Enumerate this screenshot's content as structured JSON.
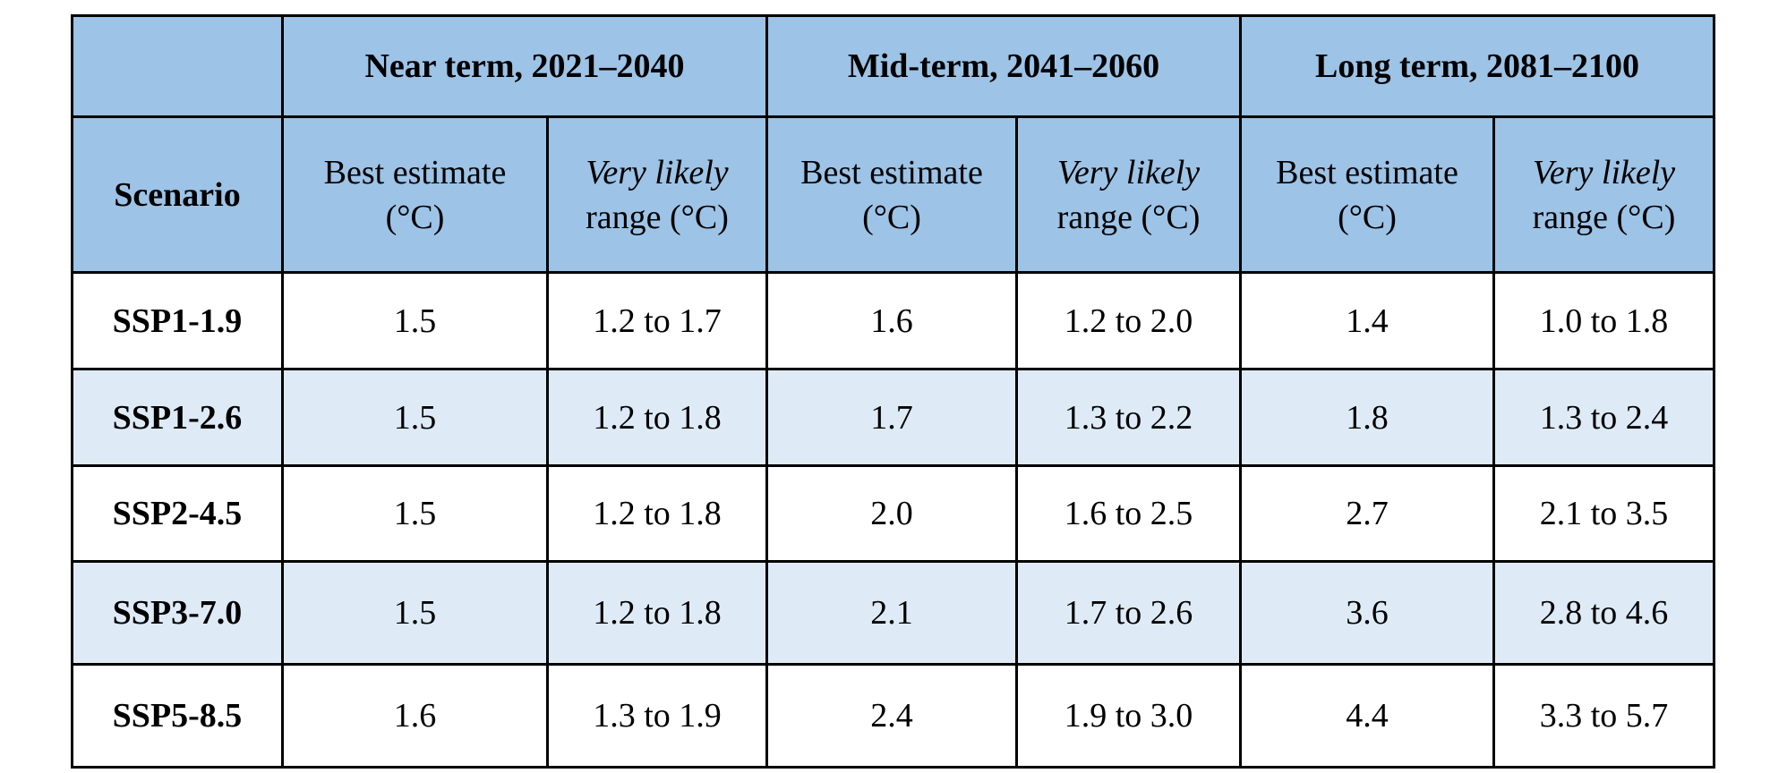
{
  "colors": {
    "header_bg": "#9dc3e6",
    "row_alt_bg": "#deebf7",
    "row_bg": "#ffffff",
    "border": "#000000"
  },
  "table": {
    "corner_label": "",
    "period_headers": [
      "Near term, 2021–2040",
      "Mid-term, 2041–2060",
      "Long term, 2081–2100"
    ],
    "scenario_label": "Scenario",
    "best_estimate": {
      "line1": "Best estimate",
      "line2": "(°C)"
    },
    "likely_range": {
      "line1": "Very likely",
      "line2": "range (°C)"
    },
    "rows": [
      {
        "scenario": "SSP1-1.9",
        "values": [
          "1.5",
          "1.2 to 1.7",
          "1.6",
          "1.2 to 2.0",
          "1.4",
          "1.0 to 1.8"
        ]
      },
      {
        "scenario": "SSP1-2.6",
        "values": [
          "1.5",
          "1.2 to 1.8",
          "1.7",
          "1.3 to 2.2",
          "1.8",
          "1.3 to 2.4"
        ]
      },
      {
        "scenario": "SSP2-4.5",
        "values": [
          "1.5",
          "1.2 to 1.8",
          "2.0",
          "1.6 to 2.5",
          "2.7",
          "2.1 to 3.5"
        ]
      },
      {
        "scenario": "SSP3-7.0",
        "values": [
          "1.5",
          "1.2 to 1.8",
          "2.1",
          "1.7 to 2.6",
          "3.6",
          "2.8 to 4.6"
        ]
      },
      {
        "scenario": "SSP5-8.5",
        "values": [
          "1.6",
          "1.3 to 1.9",
          "2.4",
          "1.9 to 3.0",
          "4.4",
          "3.3 to 5.7"
        ]
      }
    ]
  }
}
